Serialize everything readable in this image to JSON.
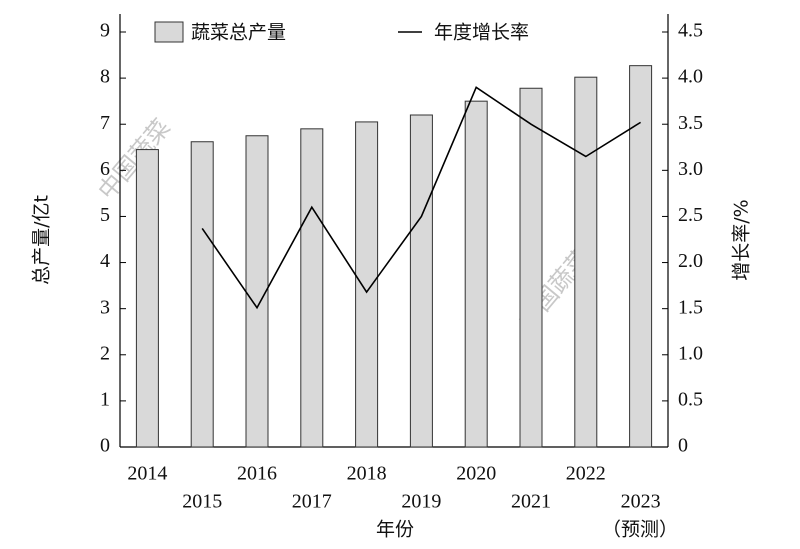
{
  "chart_data": {
    "type": "bar_line",
    "categories": [
      "2014",
      "2015",
      "2016",
      "2017",
      "2018",
      "2019",
      "2020",
      "2021",
      "2022",
      "2023"
    ],
    "forecast_note": "（预测）",
    "x_label": "年份",
    "y_label": "总产量/亿t",
    "y2_label": "增长率/%",
    "watermark": "中国蔬菜",
    "series": [
      {
        "name": "蔬菜总产量",
        "color": "#d9d9d9",
        "type": "bar",
        "values": [
          6.45,
          6.62,
          6.75,
          6.9,
          7.05,
          7.2,
          7.5,
          7.78,
          8.02,
          8.27
        ]
      },
      {
        "name": "年度增长率",
        "color": "#000000",
        "type": "line",
        "axis": "y2",
        "values": [
          null,
          2.37,
          1.51,
          2.6,
          1.68,
          2.5,
          3.9,
          3.5,
          3.15,
          3.52
        ]
      }
    ],
    "ylim": [
      0,
      9
    ],
    "yticks": [
      0,
      1,
      2,
      3,
      4,
      5,
      6,
      7,
      8,
      9
    ],
    "y2lim": [
      0,
      4.5
    ],
    "y2ticks": [
      0,
      0.5,
      {
        "value": 1,
        "label": "1.0"
      },
      1.5,
      {
        "value": 2,
        "label": "2.0"
      },
      2.5,
      {
        "value": 3,
        "label": "3.0"
      },
      3.5,
      {
        "value": 4,
        "label": "4.0"
      },
      4.5
    ]
  }
}
